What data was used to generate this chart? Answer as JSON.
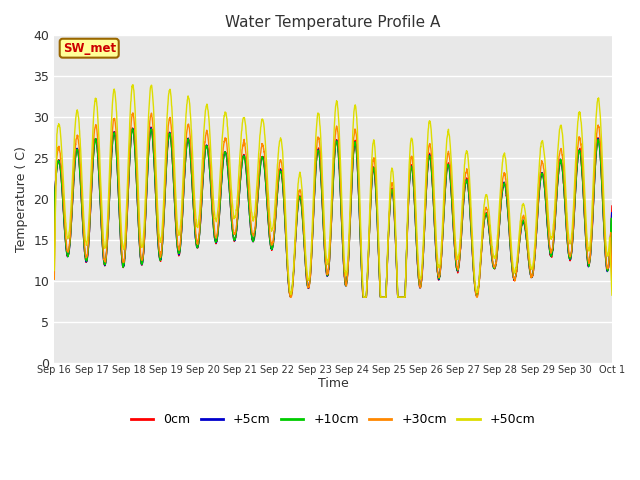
{
  "title": "Water Temperature Profile A",
  "xlabel": "Time",
  "ylabel": "Temperature ( C)",
  "ylim": [
    0,
    40
  ],
  "yticks": [
    0,
    5,
    10,
    15,
    20,
    25,
    30,
    35,
    40
  ],
  "annotation_text": "SW_met",
  "annotation_color": "#cc0000",
  "annotation_bg": "#ffff99",
  "annotation_border": "#996600",
  "plot_bg_color": "#e8e8e8",
  "series_colors": [
    "#ff0000",
    "#0000cc",
    "#00cc00",
    "#ff8800",
    "#dddd00"
  ],
  "series_labels": [
    "0cm",
    "+5cm",
    "+10cm",
    "+30cm",
    "+50cm"
  ],
  "line_width": 1.0,
  "xtick_labels": [
    "Sep 16",
    "Sep 17",
    "Sep 18",
    "Sep 19",
    "Sep 20",
    "Sep 21",
    "Sep 22",
    "Sep 23",
    "Sep 24",
    "Sep 25",
    "Sep 26",
    "Sep 27",
    "Sep 28",
    "Sep 29",
    "Sep 30",
    "Oct 1"
  ]
}
